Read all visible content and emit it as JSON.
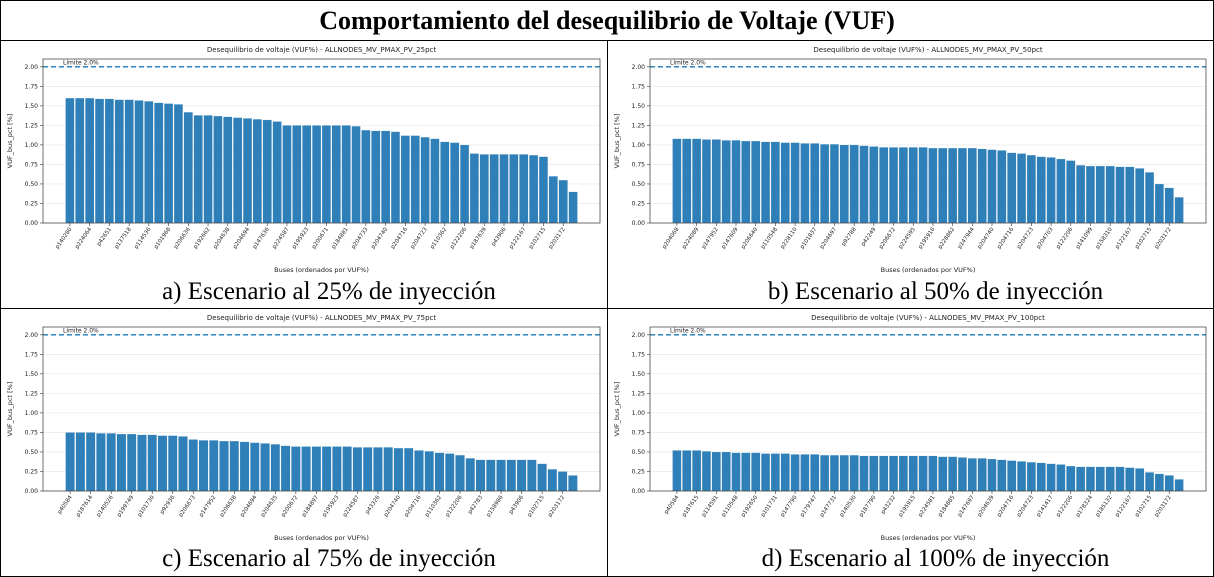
{
  "title": "Comportamiento del desequilibrio de Voltaje (VUF)",
  "chart_data": [
    {
      "type": "bar",
      "caption": "a)  Escenario al 25% de inyección",
      "title": "Desequilibrio de voltaje (VUF%) - ALLNODES_MV_PMAX_PV_25pct",
      "xlabel": "Buses (ordenados por VUF%)",
      "ylabel": "VUF_bus_pct [%]",
      "annotation": "Límite 2.0%",
      "limit": 2.0,
      "color": "#2f7fb9",
      "limit_color": "#1f77b4",
      "grid": true,
      "ylim": [
        0,
        2.1
      ],
      "yticks": [
        {
          "value": 0,
          "label": "0.00"
        },
        {
          "value": 0.25,
          "label": "0.25"
        },
        {
          "value": 0.5,
          "label": "0.50"
        },
        {
          "value": 0.75,
          "label": "0.75"
        },
        {
          "value": 1,
          "label": "1.00"
        },
        {
          "value": 1.25,
          "label": "1.25"
        },
        {
          "value": 1.5,
          "label": "1.50"
        },
        {
          "value": 1.75,
          "label": "1.75"
        },
        {
          "value": 2,
          "label": "2.00"
        }
      ],
      "categories": [
        "p140280",
        null,
        "p224064",
        null,
        "p42651",
        null,
        "p137518",
        null,
        "p114536",
        null,
        "p101968",
        null,
        "p206636",
        null,
        "p192662",
        null,
        "p204638",
        null,
        "p204694",
        null,
        "p147636",
        null,
        "p224587",
        null,
        "p195923",
        null,
        "p200671",
        null,
        "p184881",
        null,
        "p204733",
        null,
        "p204740",
        null,
        "p204716",
        null,
        "p204723",
        null,
        "p110362",
        null,
        "p122206",
        null,
        "p187639",
        null,
        "p43906",
        null,
        "p122167",
        null,
        "p102715",
        null,
        "p203172",
        null
      ],
      "values": [
        1.6,
        1.6,
        1.6,
        1.59,
        1.59,
        1.58,
        1.58,
        1.57,
        1.56,
        1.54,
        1.53,
        1.52,
        1.42,
        1.38,
        1.38,
        1.37,
        1.36,
        1.35,
        1.34,
        1.33,
        1.32,
        1.3,
        1.25,
        1.25,
        1.25,
        1.25,
        1.25,
        1.25,
        1.25,
        1.24,
        1.19,
        1.18,
        1.18,
        1.17,
        1.12,
        1.12,
        1.1,
        1.08,
        1.04,
        1.03,
        1.0,
        0.89,
        0.88,
        0.88,
        0.88,
        0.88,
        0.88,
        0.87,
        0.85,
        0.6,
        0.55,
        0.4
      ]
    },
    {
      "type": "bar",
      "caption": "b)  Escenario al 50% de inyección",
      "title": "Desequilibrio de voltaje (VUF%) - ALLNODES_MV_PMAX_PV_50pct",
      "xlabel": "Buses (ordenados por VUF%)",
      "ylabel": "VUF_bus_pct [%]",
      "annotation": "Límite 2.0%",
      "limit": 2.0,
      "color": "#2f7fb9",
      "limit_color": "#1f77b4",
      "grid": true,
      "ylim": [
        0,
        2.1
      ],
      "yticks": [
        {
          "value": 0,
          "label": "0.00"
        },
        {
          "value": 0.25,
          "label": "0.25"
        },
        {
          "value": 0.5,
          "label": "0.50"
        },
        {
          "value": 0.75,
          "label": "0.75"
        },
        {
          "value": 1,
          "label": "1.00"
        },
        {
          "value": 1.25,
          "label": "1.25"
        },
        {
          "value": 1.5,
          "label": "1.50"
        },
        {
          "value": 1.75,
          "label": "1.75"
        },
        {
          "value": 2,
          "label": "2.00"
        }
      ],
      "categories": [
        "p204068",
        null,
        "p224089",
        null,
        "p147952",
        null,
        "p147609",
        null,
        "p206640",
        null,
        "p110548",
        null,
        "p228110",
        null,
        "p101837",
        null,
        "p204697",
        null,
        "p92788",
        null,
        "p42249",
        null,
        "p206672",
        null,
        "p224595",
        null,
        "p195916",
        null,
        "p228862",
        null,
        "p147944",
        null,
        "p204740",
        null,
        "p204716",
        null,
        "p204723",
        null,
        "p204703",
        null,
        "p122206",
        null,
        "p141099",
        null,
        "p158310",
        null,
        "p122167",
        null,
        "p102715",
        null,
        "p203172",
        null
      ],
      "values": [
        1.08,
        1.08,
        1.08,
        1.07,
        1.07,
        1.06,
        1.06,
        1.05,
        1.05,
        1.04,
        1.04,
        1.03,
        1.03,
        1.02,
        1.02,
        1.01,
        1.01,
        1.0,
        1.0,
        0.99,
        0.98,
        0.97,
        0.97,
        0.97,
        0.97,
        0.97,
        0.96,
        0.96,
        0.96,
        0.96,
        0.96,
        0.95,
        0.94,
        0.93,
        0.9,
        0.89,
        0.87,
        0.85,
        0.84,
        0.82,
        0.8,
        0.74,
        0.73,
        0.73,
        0.73,
        0.72,
        0.72,
        0.7,
        0.65,
        0.5,
        0.45,
        0.33
      ]
    },
    {
      "type": "bar",
      "caption": "c)  Escenario al 75% de inyección",
      "title": "Desequilibrio de voltaje (VUF%) - ALLNODES_MV_PMAX_PV_75pct",
      "xlabel": "Buses (ordenados por VUF%)",
      "ylabel": "VUF_bus_pct [%]",
      "annotation": "Límite 2.0%",
      "limit": 2.0,
      "color": "#2f7fb9",
      "limit_color": "#1f77b4",
      "grid": true,
      "ylim": [
        0,
        2.1
      ],
      "yticks": [
        {
          "value": 0,
          "label": "0.00"
        },
        {
          "value": 0.25,
          "label": "0.25"
        },
        {
          "value": 0.5,
          "label": "0.50"
        },
        {
          "value": 0.75,
          "label": "0.75"
        },
        {
          "value": 1,
          "label": "1.00"
        },
        {
          "value": 1.25,
          "label": "1.25"
        },
        {
          "value": 1.5,
          "label": "1.50"
        },
        {
          "value": 1.75,
          "label": "1.75"
        },
        {
          "value": 2,
          "label": "2.00"
        }
      ],
      "categories": [
        "p40584",
        null,
        "p187614",
        null,
        "p140526",
        null,
        "p199749",
        null,
        "p101730",
        null,
        "p92936",
        null,
        "p206673",
        null,
        "p147952",
        null,
        "p206638",
        null,
        "p204694",
        null,
        "p204635",
        null,
        "p200672",
        null,
        "p184897",
        null,
        "p195923",
        null,
        "p224587",
        null,
        "p43326",
        null,
        "p204740",
        null,
        "p204716",
        null,
        "p110362",
        null,
        "p122206",
        null,
        "p42783",
        null,
        "p158986",
        null,
        "p43906",
        null,
        "p102715",
        null,
        "p203172",
        null
      ],
      "values": [
        0.75,
        0.75,
        0.75,
        0.74,
        0.74,
        0.73,
        0.73,
        0.72,
        0.72,
        0.71,
        0.71,
        0.7,
        0.66,
        0.65,
        0.65,
        0.64,
        0.64,
        0.63,
        0.62,
        0.61,
        0.6,
        0.58,
        0.57,
        0.57,
        0.57,
        0.57,
        0.57,
        0.57,
        0.56,
        0.56,
        0.56,
        0.56,
        0.55,
        0.55,
        0.52,
        0.51,
        0.49,
        0.48,
        0.46,
        0.42,
        0.4,
        0.4,
        0.4,
        0.4,
        0.4,
        0.4,
        0.35,
        0.28,
        0.25,
        0.2
      ]
    },
    {
      "type": "bar",
      "caption": "d)  Escenario al 100% de inyección",
      "title": "Desequilibrio de voltaje (VUF%) - ALLNODES_MV_PMAX_PV_100pct",
      "xlabel": "Buses (ordenados por VUF%)",
      "ylabel": "VUF_bus_pct [%]",
      "annotation": "Límite 2.0%",
      "limit": 2.0,
      "color": "#2f7fb9",
      "limit_color": "#1f77b4",
      "grid": true,
      "ylim": [
        0,
        2.1
      ],
      "yticks": [
        {
          "value": 0,
          "label": "0.00"
        },
        {
          "value": 0.25,
          "label": "0.25"
        },
        {
          "value": 0.5,
          "label": "0.50"
        },
        {
          "value": 0.75,
          "label": "0.75"
        },
        {
          "value": 1,
          "label": "1.00"
        },
        {
          "value": 1.25,
          "label": "1.25"
        },
        {
          "value": 1.5,
          "label": "1.50"
        },
        {
          "value": 1.75,
          "label": "1.75"
        },
        {
          "value": 2,
          "label": "2.00"
        }
      ],
      "categories": [
        "p40584",
        null,
        "p187615",
        null,
        "p114591",
        null,
        "p110548",
        null,
        "p192650",
        null,
        "p101731",
        null,
        "p147790",
        null,
        "p179747",
        null,
        "p147731",
        null,
        "p140530",
        null,
        "p187790",
        null,
        "p43232",
        null,
        "p195915",
        null,
        "p224581",
        null,
        "p184885",
        null,
        "p147697",
        null,
        "p204639",
        null,
        "p204716",
        null,
        "p204723",
        null,
        "p141417",
        null,
        "p122206",
        null,
        "p178324",
        null,
        "p185132",
        null,
        "p122167",
        null,
        "p102715",
        null,
        "p203172",
        null
      ],
      "values": [
        0.52,
        0.52,
        0.52,
        0.51,
        0.5,
        0.5,
        0.49,
        0.49,
        0.49,
        0.48,
        0.48,
        0.48,
        0.47,
        0.47,
        0.47,
        0.46,
        0.46,
        0.46,
        0.46,
        0.45,
        0.45,
        0.45,
        0.45,
        0.45,
        0.45,
        0.45,
        0.45,
        0.44,
        0.44,
        0.43,
        0.42,
        0.42,
        0.41,
        0.4,
        0.39,
        0.38,
        0.37,
        0.36,
        0.35,
        0.34,
        0.32,
        0.31,
        0.31,
        0.31,
        0.31,
        0.31,
        0.3,
        0.29,
        0.24,
        0.22,
        0.2,
        0.15
      ]
    }
  ]
}
